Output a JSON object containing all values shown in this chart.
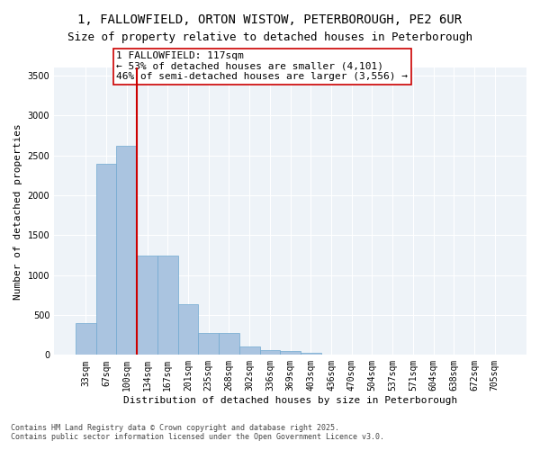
{
  "title_line1": "1, FALLOWFIELD, ORTON WISTOW, PETERBOROUGH, PE2 6UR",
  "title_line2": "Size of property relative to detached houses in Peterborough",
  "xlabel": "Distribution of detached houses by size in Peterborough",
  "ylabel": "Number of detached properties",
  "bin_labels": [
    "33sqm",
    "67sqm",
    "100sqm",
    "134sqm",
    "167sqm",
    "201sqm",
    "235sqm",
    "268sqm",
    "302sqm",
    "336sqm",
    "369sqm",
    "403sqm",
    "436sqm",
    "470sqm",
    "504sqm",
    "537sqm",
    "571sqm",
    "604sqm",
    "638sqm",
    "672sqm",
    "705sqm"
  ],
  "bar_heights": [
    400,
    2400,
    2620,
    1250,
    1250,
    640,
    270,
    270,
    110,
    60,
    50,
    30,
    8,
    5,
    3,
    2,
    1,
    1,
    0,
    0,
    0
  ],
  "bar_color": "#aac4e0",
  "bar_edgecolor": "#6fa8d0",
  "bar_linewidth": 0.5,
  "vline_x": 2.5,
  "vline_color": "#cc0000",
  "annotation_text": "1 FALLOWFIELD: 117sqm\n← 53% of detached houses are smaller (4,101)\n46% of semi-detached houses are larger (3,556) →",
  "annotation_box_edgecolor": "#cc0000",
  "annotation_box_facecolor": "#ffffff",
  "ylim": [
    0,
    3600
  ],
  "yticks": [
    0,
    500,
    1000,
    1500,
    2000,
    2500,
    3000,
    3500
  ],
  "background_color": "#eef3f8",
  "footer_line1": "Contains HM Land Registry data © Crown copyright and database right 2025.",
  "footer_line2": "Contains public sector information licensed under the Open Government Licence v3.0.",
  "grid_color": "#ffffff",
  "title_fontsize": 10,
  "subtitle_fontsize": 9,
  "axis_label_fontsize": 8,
  "tick_fontsize": 7,
  "annotation_fontsize": 8
}
